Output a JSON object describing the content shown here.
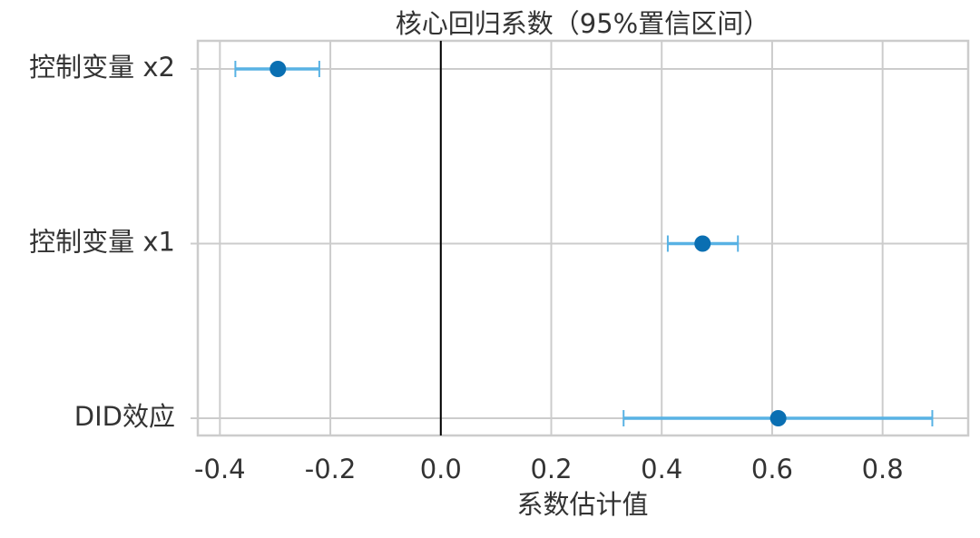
{
  "chart_data": {
    "type": "coefplot",
    "title": "核心回归系数（95%置信区间）",
    "x_label": "系数估计值",
    "categories": [
      "DID效应",
      "控制变量 x1",
      "控制变量 x2"
    ],
    "series": [
      {
        "color": "#0a6fb2",
        "values": [
          0.611,
          0.474,
          -0.295
        ],
        "ci_low": [
          0.331,
          0.411,
          -0.372
        ],
        "ci_high": [
          0.89,
          0.538,
          -0.22
        ],
        "ci_color": "#58b2e4"
      }
    ],
    "xlim": [
      -0.44,
      0.955
    ],
    "xticks": [
      -0.4,
      -0.2,
      {
        "value": 0,
        "label": "0.0"
      },
      0.2,
      0.4,
      0.6,
      0.8
    ],
    "reference_line": 0,
    "grid": true
  }
}
